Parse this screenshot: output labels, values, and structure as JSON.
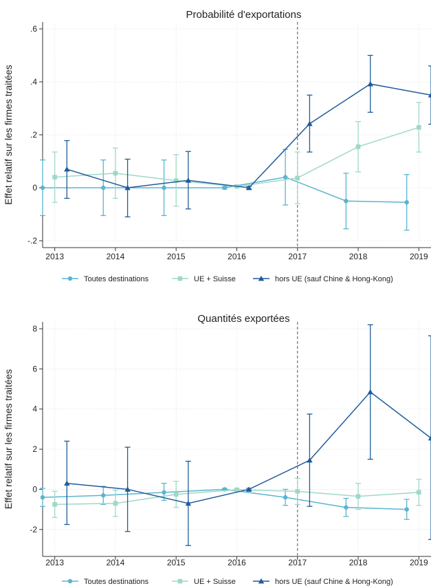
{
  "colors": {
    "series1": "#5ab4d0",
    "series2": "#9fd8c8",
    "series3": "#1f5c99",
    "grid": "#d9d9d9",
    "axis": "#333333",
    "vline": "#555555"
  },
  "chart_data": [
    {
      "type": "line",
      "title": "Probabilité d'exportations",
      "ylabel": "Effet relatif sur les firmes traitées",
      "xlabel": "",
      "ylim": [
        -0.2,
        0.6
      ],
      "xlim": [
        2012.8,
        2019.2
      ],
      "yticks": [
        -0.2,
        0,
        0.2,
        0.4,
        0.6
      ],
      "ytick_labels": [
        "-.2",
        "0",
        ".2",
        ".4",
        ".6"
      ],
      "xticks": [
        2013,
        2014,
        2015,
        2016,
        2017,
        2018,
        2019
      ],
      "xtick_labels": [
        "2013",
        "2014",
        "2015",
        "2016",
        "2017",
        "2018",
        "2019"
      ],
      "grid": true,
      "reference_line_x": 2017,
      "legend_position": "bottom",
      "series": [
        {
          "name": "Toutes destinations",
          "marker": "circle",
          "x": [
            2012.8,
            2013.8,
            2014.8,
            2015.8,
            2016.8,
            2017.8,
            2018.8
          ],
          "y": [
            0,
            0,
            0,
            0,
            0.04,
            -0.05,
            -0.055
          ],
          "ci_low": [
            -0.105,
            -0.105,
            -0.105,
            -0.005,
            -0.065,
            -0.155,
            -0.16
          ],
          "ci_high": [
            0.105,
            0.105,
            0.105,
            0.005,
            0.145,
            0.055,
            0.05
          ]
        },
        {
          "name": "UE + Suisse",
          "marker": "square",
          "x": [
            2013.0,
            2014.0,
            2015.0,
            2016.0,
            2017.0,
            2018.0,
            2019.0
          ],
          "y": [
            0.04,
            0.055,
            0.027,
            0.005,
            0.037,
            0.155,
            0.228
          ],
          "ci_low": [
            -0.055,
            -0.04,
            -0.07,
            0.0,
            -0.06,
            0.06,
            0.135
          ],
          "ci_high": [
            0.135,
            0.15,
            0.125,
            0.01,
            0.135,
            0.25,
            0.322
          ]
        },
        {
          "name": "hors UE (sauf Chine & Hong-Kong)",
          "marker": "triangle",
          "x": [
            2013.2,
            2014.2,
            2015.2,
            2016.2,
            2017.2,
            2018.2,
            2019.2
          ],
          "y": [
            0.07,
            0.0,
            0.028,
            0.0,
            0.242,
            0.392,
            0.35
          ],
          "ci_low": [
            -0.04,
            -0.11,
            -0.08,
            -0.005,
            0.135,
            0.285,
            0.24
          ],
          "ci_high": [
            0.178,
            0.108,
            0.137,
            0.005,
            0.35,
            0.5,
            0.46
          ]
        }
      ]
    },
    {
      "type": "line",
      "title": "Quantités exportées",
      "ylabel": "Effet relatif sur les firmes traitées",
      "xlabel": "",
      "ylim": [
        -3,
        8
      ],
      "xlim": [
        2012.8,
        2019.2
      ],
      "yticks": [
        -2,
        0,
        2,
        4,
        6,
        8
      ],
      "ytick_labels": [
        "-2",
        "0",
        "2",
        "4",
        "6",
        "8"
      ],
      "xticks": [
        2013,
        2014,
        2015,
        2016,
        2017,
        2018,
        2019
      ],
      "xtick_labels": [
        "2013",
        "2014",
        "2015",
        "2016",
        "2017",
        "2018",
        "2019"
      ],
      "grid": true,
      "reference_line_x": 2017,
      "legend_position": "bottom",
      "series": [
        {
          "name": "Toutes destinations",
          "marker": "circle",
          "x": [
            2012.8,
            2013.8,
            2014.8,
            2015.8,
            2016.8,
            2017.8,
            2018.8
          ],
          "y": [
            -0.4,
            -0.3,
            -0.15,
            0.0,
            -0.4,
            -0.9,
            -1.0
          ],
          "ci_low": [
            -0.85,
            -0.75,
            -0.55,
            -0.05,
            -0.8,
            -1.35,
            -1.5
          ],
          "ci_high": [
            0.05,
            0.15,
            0.3,
            0.05,
            0.0,
            -0.45,
            -0.5
          ]
        },
        {
          "name": "UE + Suisse",
          "marker": "square",
          "x": [
            2013.0,
            2014.0,
            2015.0,
            2016.0,
            2017.0,
            2018.0,
            2019.0
          ],
          "y": [
            -0.75,
            -0.7,
            -0.25,
            -0.02,
            -0.1,
            -0.35,
            -0.15
          ],
          "ci_low": [
            -1.4,
            -1.35,
            -0.9,
            -0.07,
            -0.75,
            -1.0,
            -0.8
          ],
          "ci_high": [
            -0.1,
            -0.05,
            0.4,
            0.03,
            0.55,
            0.3,
            0.5
          ]
        },
        {
          "name": "hors UE (sauf Chine & Hong-Kong)",
          "marker": "triangle",
          "x": [
            2013.2,
            2014.2,
            2015.2,
            2016.2,
            2017.2,
            2018.2,
            2019.2
          ],
          "y": [
            0.3,
            0.0,
            -0.7,
            0.0,
            1.45,
            4.85,
            2.55
          ],
          "ci_low": [
            -1.75,
            -2.1,
            -2.8,
            -0.05,
            -0.85,
            1.5,
            -2.5
          ],
          "ci_high": [
            2.4,
            2.1,
            1.4,
            0.05,
            3.75,
            8.2,
            7.65
          ]
        }
      ]
    }
  ]
}
